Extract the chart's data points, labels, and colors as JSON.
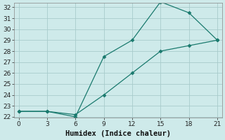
{
  "line1_x": [
    0,
    3,
    6,
    9,
    12,
    15,
    18,
    21
  ],
  "line1_y": [
    22.5,
    22.5,
    22.0,
    27.5,
    29.0,
    32.5,
    31.5,
    29.0
  ],
  "line2_x": [
    0,
    3,
    6,
    9,
    12,
    15,
    18,
    21
  ],
  "line2_y": [
    22.5,
    22.5,
    22.2,
    24.0,
    26.0,
    28.0,
    28.5,
    29.0
  ],
  "line_color": "#1a7a6e",
  "bg_color": "#ceeaea",
  "grid_color": "#a8cccc",
  "xlabel": "Humidex (Indice chaleur)",
  "xlim": [
    -0.5,
    21.5
  ],
  "ylim": [
    21.9,
    32.4
  ],
  "xticks": [
    0,
    3,
    6,
    9,
    12,
    15,
    18,
    21
  ],
  "yticks": [
    22,
    23,
    24,
    25,
    26,
    27,
    28,
    29,
    30,
    31,
    32
  ],
  "xlabel_fontsize": 7.5,
  "tick_fontsize": 6.5
}
